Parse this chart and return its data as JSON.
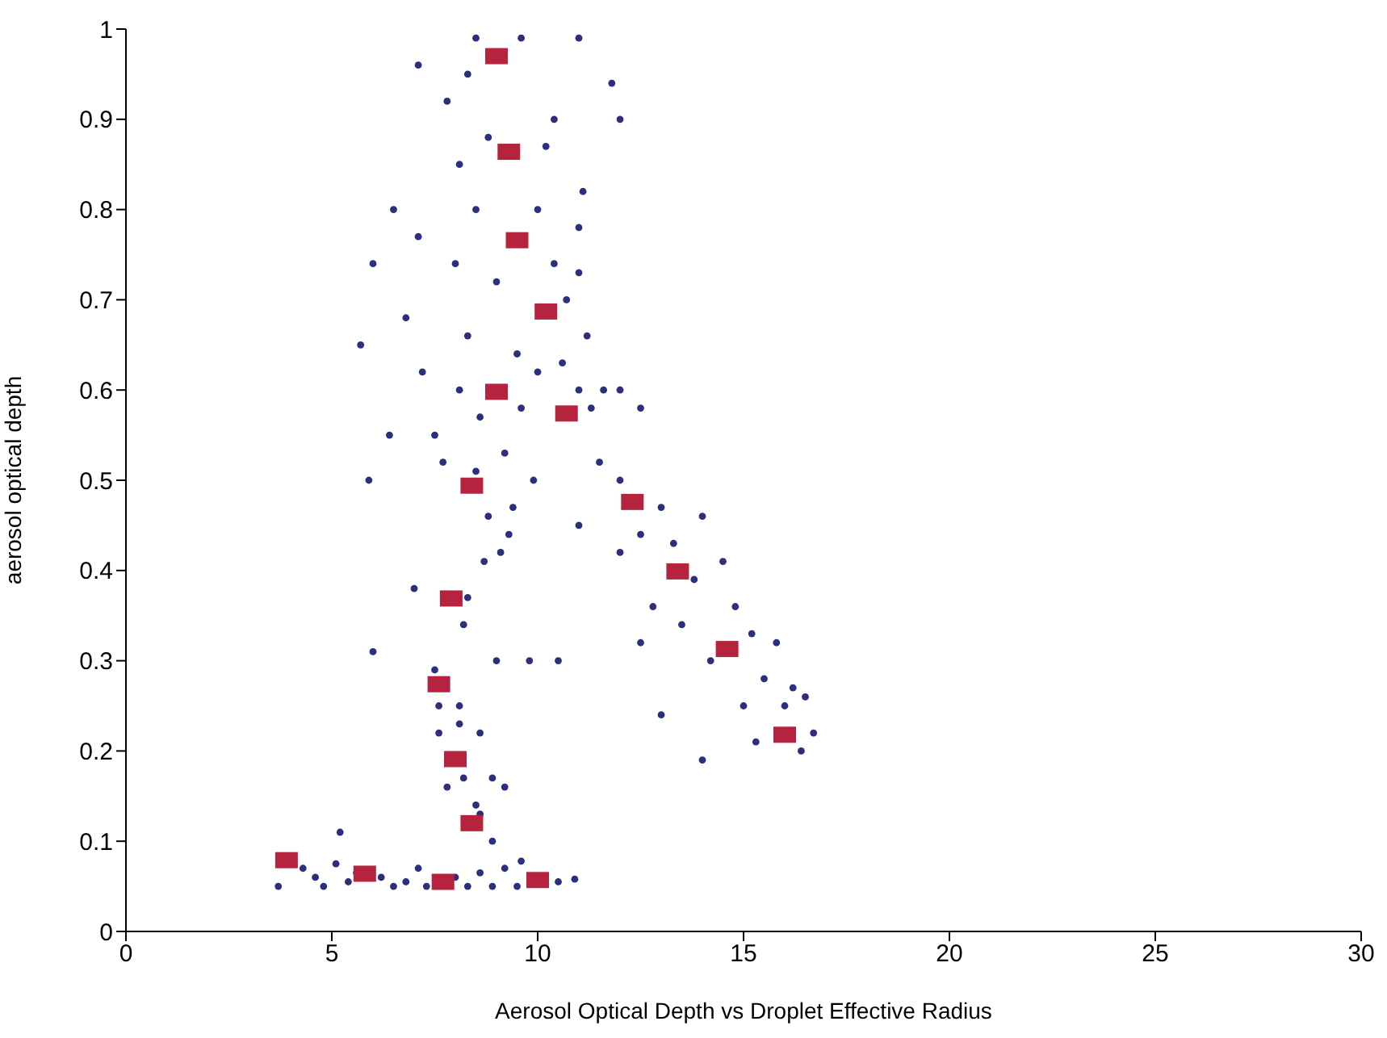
{
  "chart_data": {
    "type": "scatter",
    "xlabel": "Aerosol Optical Depth vs Droplet Effective Radius",
    "ylabel": "aerosol optical depth",
    "xlim": [
      0,
      30
    ],
    "xticks": [
      0,
      5,
      10,
      15,
      20,
      25,
      30
    ],
    "ylim": [
      0,
      1
    ],
    "yticks": [
      0,
      0.1,
      0.2,
      0.3,
      0.4,
      0.5,
      0.6,
      0.7,
      0.8,
      0.9,
      1
    ],
    "grid": false,
    "legend": false,
    "series": [
      {
        "color": "#2b2f7e",
        "marker": "circle",
        "x": [
          3.7,
          4.3,
          4.6,
          4.8,
          5.1,
          5.2,
          5.4,
          5.6,
          6.2,
          6.5,
          6.8,
          7.1,
          7.3,
          8.0,
          8.3,
          8.6,
          8.9,
          9.2,
          9.5,
          9.6,
          10.5,
          10.9,
          8.5,
          8.6,
          8.9,
          8.2,
          8.9,
          9.2,
          7.8,
          8.6,
          8.1,
          7.6,
          7.6,
          8.1,
          7.5,
          9.0,
          9.8,
          10.5,
          6.0,
          8.2,
          8.3,
          7.0,
          8.7,
          9.1,
          9.3,
          8.8,
          9.4,
          8.5,
          7.7,
          9.2,
          9.9,
          7.5,
          8.6,
          9.6,
          8.1,
          7.2,
          6.8,
          9.5,
          8.3,
          10.0,
          10.6,
          11.0,
          11.3,
          11.6,
          12.0,
          12.5,
          11.2,
          10.7,
          11.0,
          10.4,
          11.0,
          9.0,
          8.0,
          7.1,
          8.5,
          10.0,
          11.1,
          8.1,
          8.8,
          10.2,
          10.4,
          7.8,
          8.3,
          11.8,
          12.0,
          11.0,
          8.5,
          9.6,
          7.1,
          6.5,
          6.0,
          5.7,
          5.9,
          6.4,
          11.5,
          12.0,
          12.5,
          13.0,
          14.0,
          12.0,
          13.3,
          12.8,
          13.8,
          14.5,
          14.8,
          13.5,
          14.2,
          15.2,
          15.8,
          15.5,
          16.2,
          16.5,
          15.0,
          16.0,
          16.7,
          15.3,
          16.4,
          14.0,
          12.5,
          11.0,
          13.0
        ],
        "values": [
          0.05,
          0.07,
          0.06,
          0.05,
          0.075,
          0.11,
          0.055,
          0.065,
          0.06,
          0.05,
          0.055,
          0.07,
          0.05,
          0.06,
          0.05,
          0.065,
          0.05,
          0.07,
          0.05,
          0.078,
          0.055,
          0.058,
          0.14,
          0.13,
          0.1,
          0.17,
          0.17,
          0.16,
          0.16,
          0.22,
          0.23,
          0.22,
          0.25,
          0.25,
          0.29,
          0.3,
          0.3,
          0.3,
          0.31,
          0.34,
          0.37,
          0.38,
          0.41,
          0.42,
          0.44,
          0.46,
          0.47,
          0.51,
          0.52,
          0.53,
          0.5,
          0.55,
          0.57,
          0.58,
          0.6,
          0.62,
          0.68,
          0.64,
          0.66,
          0.62,
          0.63,
          0.6,
          0.58,
          0.6,
          0.6,
          0.58,
          0.66,
          0.7,
          0.73,
          0.74,
          0.78,
          0.72,
          0.74,
          0.77,
          0.8,
          0.8,
          0.82,
          0.85,
          0.88,
          0.87,
          0.9,
          0.92,
          0.95,
          0.94,
          0.9,
          0.99,
          0.99,
          0.99,
          0.96,
          0.8,
          0.74,
          0.65,
          0.5,
          0.55,
          0.52,
          0.5,
          0.44,
          0.47,
          0.46,
          0.42,
          0.43,
          0.36,
          0.39,
          0.41,
          0.36,
          0.34,
          0.3,
          0.33,
          0.32,
          0.28,
          0.27,
          0.26,
          0.25,
          0.25,
          0.22,
          0.21,
          0.2,
          0.19,
          0.32,
          0.45,
          0.24
        ]
      },
      {
        "color": "#b5233f",
        "marker": "square",
        "x": [
          9.0,
          9.3,
          9.5,
          10.2,
          9.0,
          10.7,
          8.4,
          12.3,
          13.4,
          14.6,
          16.0,
          7.9,
          7.6,
          8.0,
          8.4,
          3.9,
          5.8,
          7.7,
          10.0
        ],
        "values": [
          0.97,
          0.864,
          0.766,
          0.687,
          0.598,
          0.574,
          0.494,
          0.476,
          0.399,
          0.313,
          0.218,
          0.369,
          0.274,
          0.191,
          0.12,
          0.079,
          0.064,
          0.055,
          0.057
        ]
      }
    ]
  }
}
